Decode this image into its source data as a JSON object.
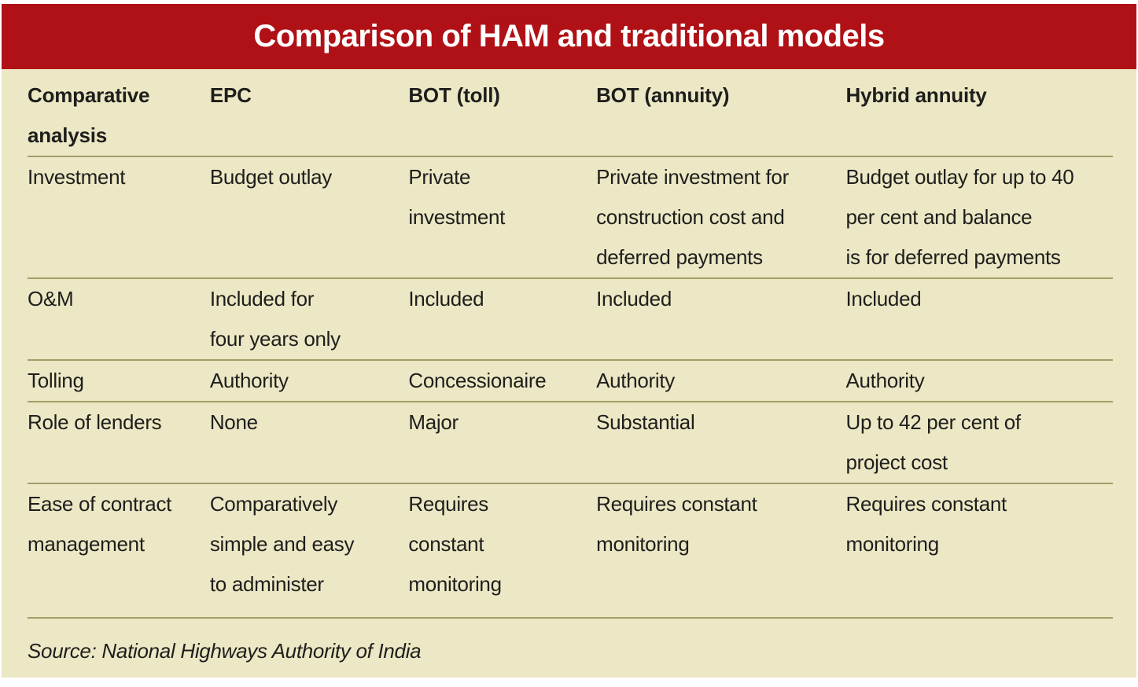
{
  "header": {
    "title": "Comparison of HAM and traditional models"
  },
  "table": {
    "column_headers": [
      "Comparative\nanalysis",
      "EPC",
      "BOT (toll)",
      "BOT (annuity)",
      "Hybrid annuity"
    ],
    "rows": [
      {
        "cells": [
          "Investment",
          "Budget outlay",
          "Private\ninvestment",
          "Private investment for\nconstruction cost and\ndeferred payments",
          "Budget outlay for up to 40\nper cent and balance\nis for deferred payments"
        ]
      },
      {
        "cells": [
          "O&M",
          "Included for\nfour years only",
          "Included",
          "Included",
          "Included"
        ]
      },
      {
        "cells": [
          "Tolling",
          "Authority",
          "Concessionaire",
          "Authority",
          "Authority"
        ]
      },
      {
        "cells": [
          "Role of lenders",
          "None",
          "Major",
          "Substantial",
          "Up to 42 per cent of\nproject cost"
        ]
      },
      {
        "cells": [
          "Ease of contract\nmanagement",
          "Comparatively\nsimple and easy\nto administer",
          "Requires\nconstant\nmonitoring",
          "Requires constant\nmonitoring",
          "Requires constant\nmonitoring"
        ]
      }
    ]
  },
  "footer": {
    "source": "Source: National Highways Authority of India"
  },
  "colors": {
    "header_red": "#b01116",
    "body_cream": "#ece8c5",
    "separator_olive": "#a49e68",
    "text_dark": "#1e1e1c",
    "title_text": "#ffffff"
  }
}
